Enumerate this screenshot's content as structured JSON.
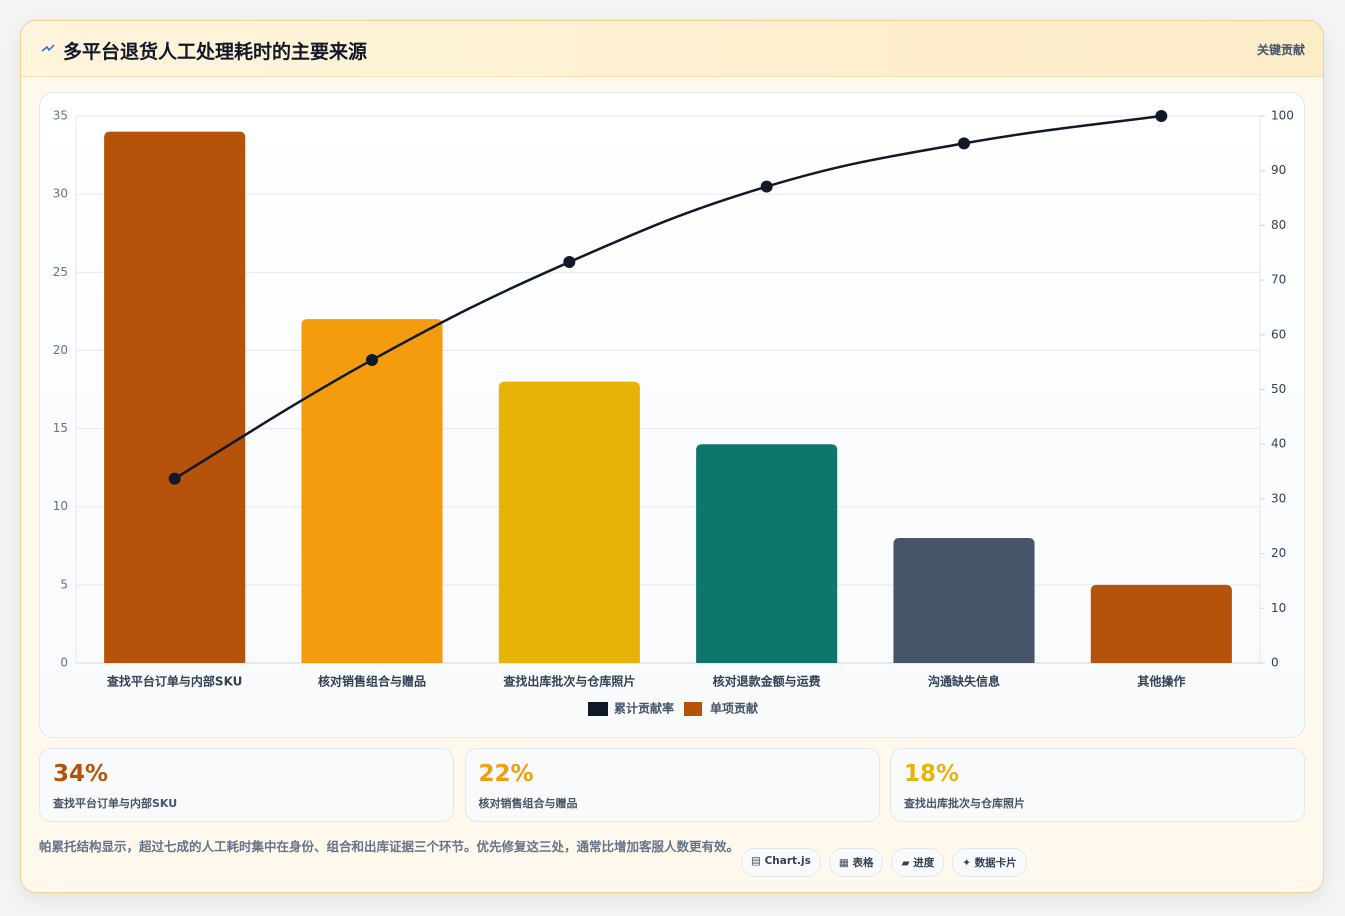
{
  "header": {
    "title": "多平台退货人工处理耗时的主要来源",
    "badge": "关键贡献"
  },
  "chart_data": {
    "type": "pareto",
    "categories": [
      "查找平台订单与内部SKU",
      "核对销售组合与赠品",
      "查找出库批次与仓库照片",
      "核对退款金额与运费",
      "沟通缺失信息",
      "其他操作"
    ],
    "series": [
      {
        "name": "累计贡献率",
        "type": "line",
        "axis": "y2",
        "color": "#111827",
        "values": [
          33.7,
          55.4,
          73.3,
          87.1,
          95.0,
          100
        ]
      },
      {
        "name": "单项贡献",
        "type": "bar",
        "color": "#b45309",
        "colors": [
          "#b45309",
          "#f39c0d",
          "#e8b308",
          "#0f766e",
          "#475569",
          "#b45309"
        ],
        "values": [
          34,
          22,
          18,
          14,
          8,
          5
        ]
      }
    ],
    "ylim": [
      0,
      35
    ],
    "yticks": [
      0,
      5,
      10,
      15,
      20,
      25,
      30,
      35
    ],
    "y2lim": [
      0,
      100
    ],
    "y2ticks": [
      0,
      10,
      20,
      30,
      40,
      50,
      60,
      70,
      80,
      90,
      100
    ],
    "grid": true,
    "legend": "bottom"
  },
  "stats": [
    {
      "value": "34%",
      "label": "查找平台订单与内部SKU",
      "color": "#b45309"
    },
    {
      "value": "22%",
      "label": "核对销售组合与赠品",
      "color": "#f39c0d"
    },
    {
      "value": "18%",
      "label": "查找出库批次与仓库照片",
      "color": "#e8b308"
    }
  ],
  "footer": {
    "note": "帕累托结构显示，超过七成的人工耗时集中在身份、组合和出库证据三个环节。优先修复这三处，通常比增加客服人数更有效。",
    "tags": [
      "▤ Chart.js",
      "▦ 表格",
      "▰ 进度",
      "✦ 数据卡片"
    ]
  }
}
